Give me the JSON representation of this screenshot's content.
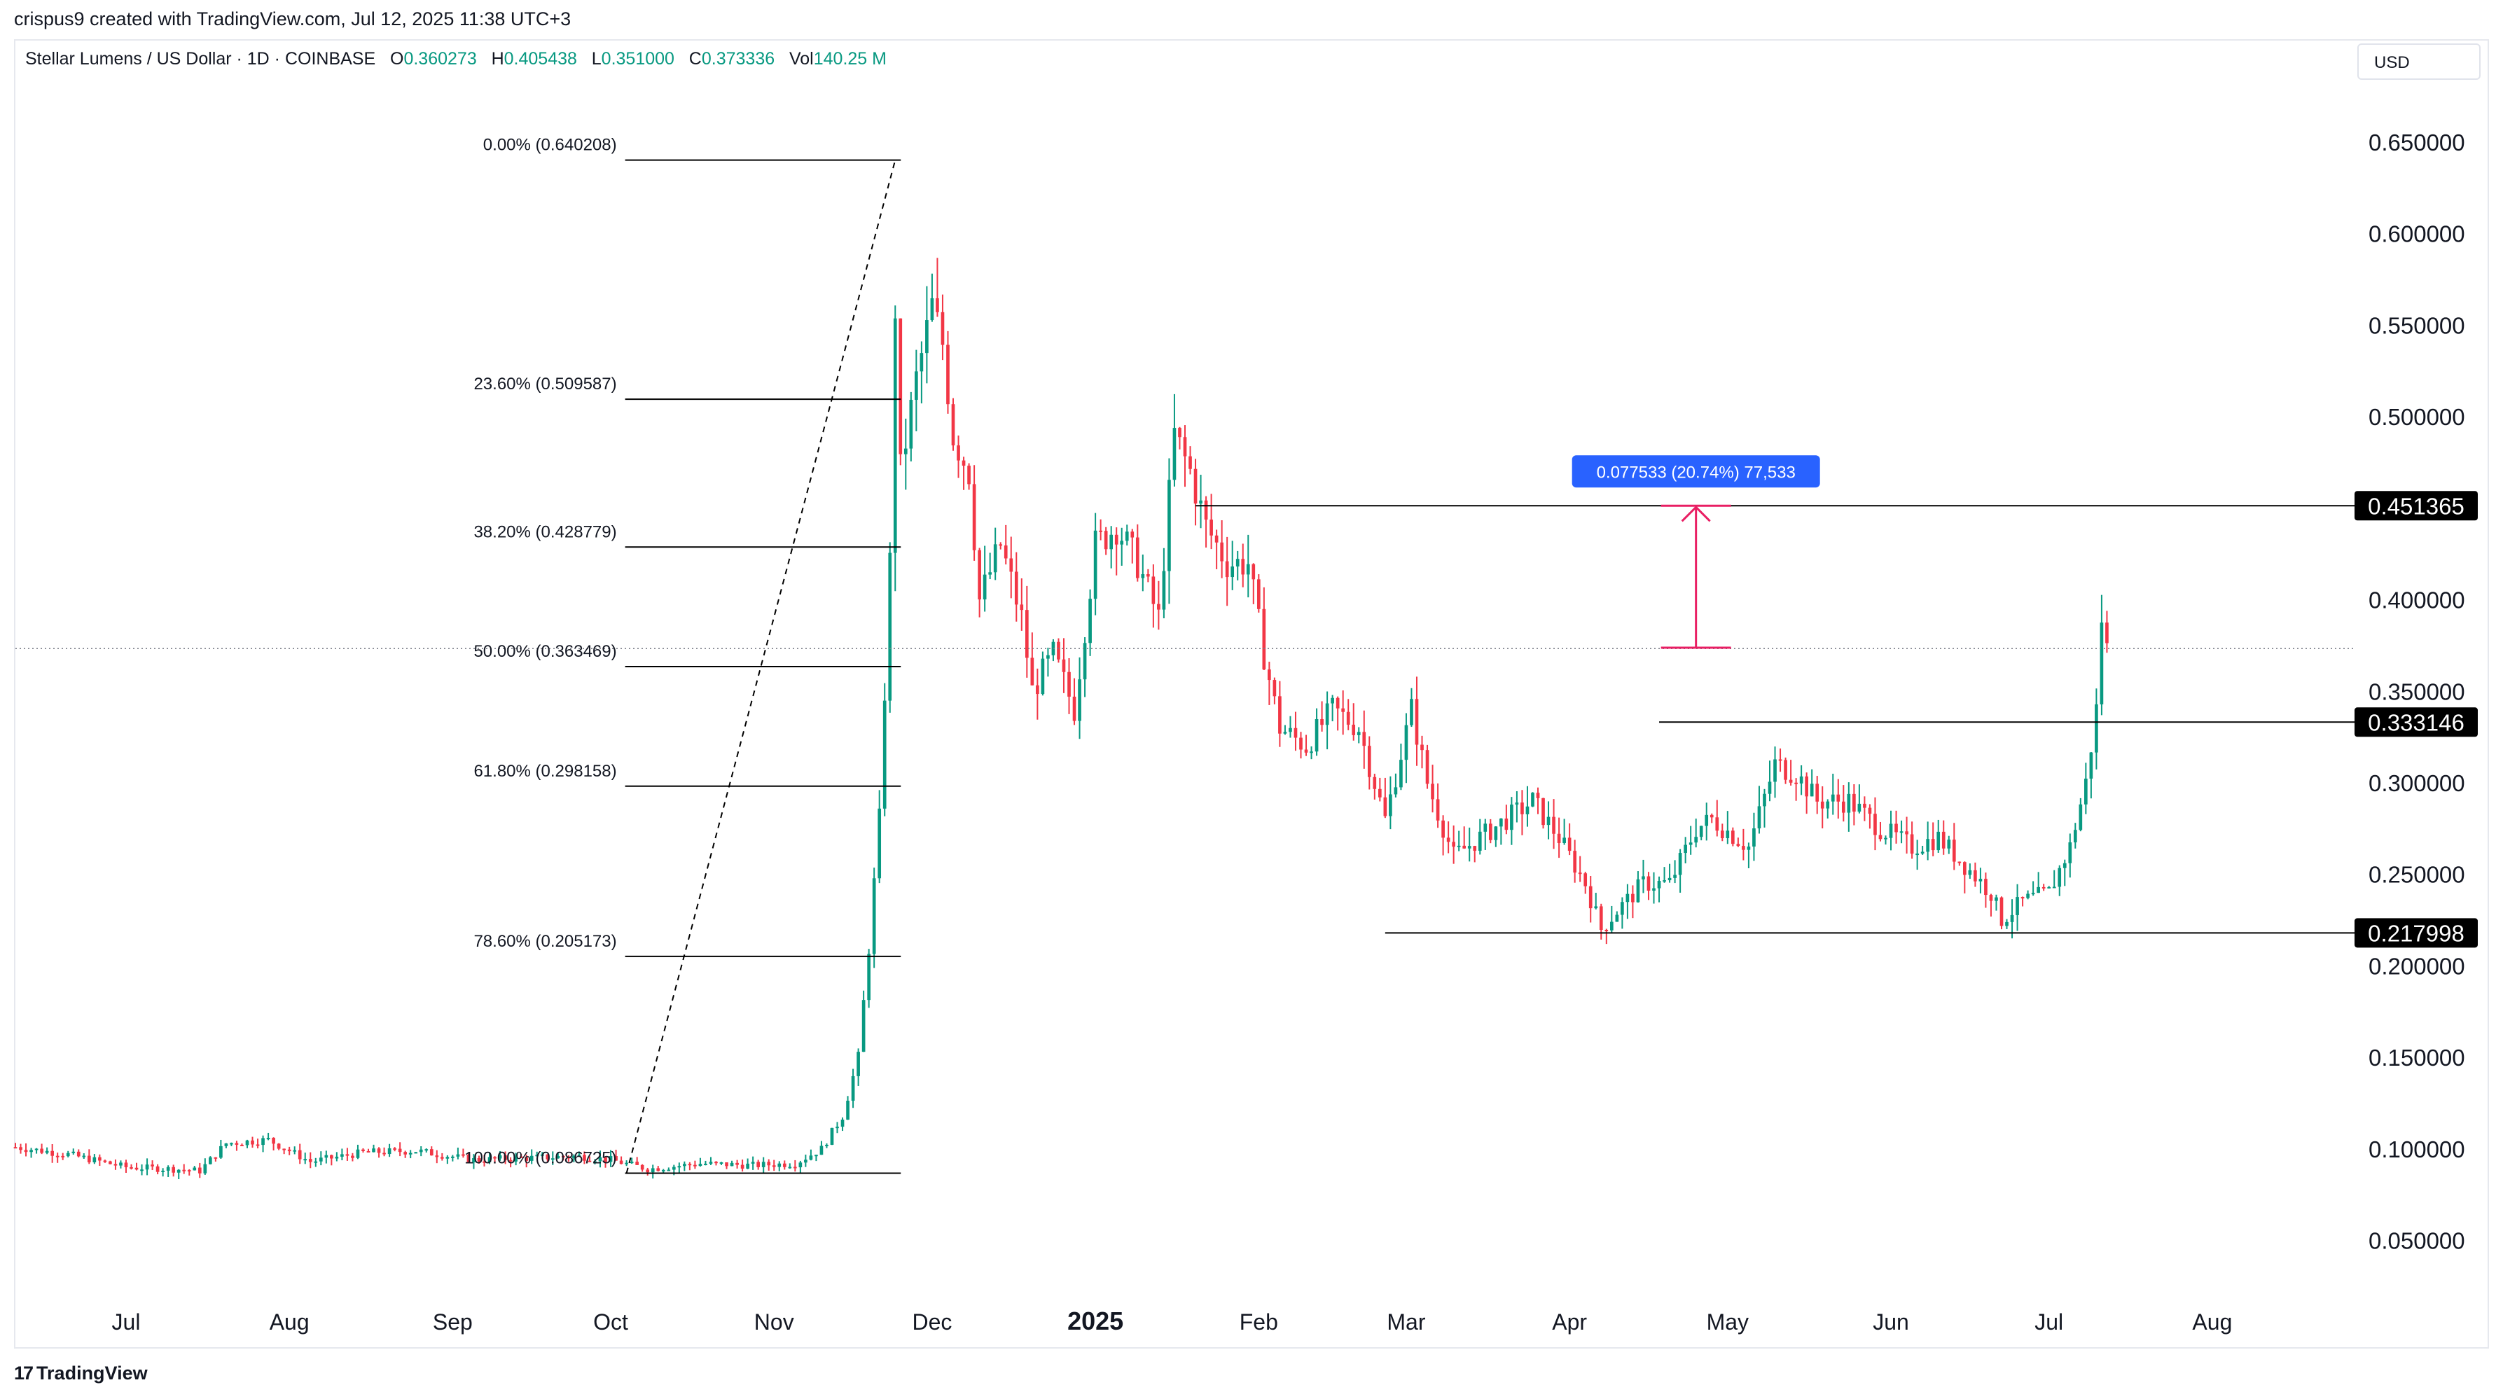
{
  "header": {
    "created_text": "crispus9 created with TradingView.com, Jul 12, 2025 11:38 UTC+3"
  },
  "legend": {
    "symbol": "Stellar Lumens / US Dollar · 1D · COINBASE",
    "open_label": "O",
    "open": "0.360273",
    "high_label": "H",
    "high": "0.405438",
    "low_label": "L",
    "low": "0.351000",
    "close_label": "C",
    "close": "0.373336",
    "vol_label": "Vol",
    "vol": "140.25 M"
  },
  "currency": "USD",
  "footer": {
    "logo_icon": "tradingview-logo-icon",
    "brand": "TradingView"
  },
  "colors": {
    "up": "#089981",
    "down": "#f23645",
    "measure": "#e91e63",
    "label_blue": "#2962ff",
    "price_tag_bg": "#000000",
    "fib_line": "#000000"
  },
  "chart_data": {
    "type": "candlestick",
    "y_axis": {
      "ticks": [
        "0.650000",
        "0.600000",
        "0.550000",
        "0.500000",
        "0.450000",
        "0.400000",
        "0.350000",
        "0.300000",
        "0.250000",
        "0.200000",
        "0.150000",
        "0.100000",
        "0.050000"
      ],
      "tick_values": [
        0.65,
        0.6,
        0.55,
        0.5,
        0.45,
        0.4,
        0.35,
        0.3,
        0.25,
        0.2,
        0.15,
        0.1,
        0.05
      ],
      "ylim": [
        0.0,
        0.7
      ]
    },
    "x_axis": {
      "ticks": [
        "Jul",
        "Aug",
        "Sep",
        "Oct",
        "Nov",
        "Dec",
        "2025",
        "Feb",
        "Mar",
        "Apr",
        "May",
        "Jun",
        "Jul",
        "Aug"
      ],
      "tick_dates": [
        "2024-07-01",
        "2024-08-01",
        "2024-09-01",
        "2024-10-01",
        "2024-11-01",
        "2024-12-01",
        "2025-01-01",
        "2025-02-01",
        "2025-03-01",
        "2025-04-01",
        "2025-05-01",
        "2025-06-01",
        "2025-07-01",
        "2025-08-01"
      ],
      "bold_tick": "2025",
      "range": [
        "2024-06-10",
        "2025-08-28"
      ]
    },
    "price_path": [
      [
        "2024-06-10",
        0.101
      ],
      [
        "2024-06-20",
        0.097
      ],
      [
        "2024-07-01",
        0.09
      ],
      [
        "2024-07-10",
        0.089
      ],
      [
        "2024-07-15",
        0.088
      ],
      [
        "2024-07-20",
        0.103
      ],
      [
        "2024-07-28",
        0.105
      ],
      [
        "2024-08-05",
        0.093
      ],
      [
        "2024-08-15",
        0.098
      ],
      [
        "2024-08-25",
        0.099
      ],
      [
        "2024-09-05",
        0.094
      ],
      [
        "2024-09-15",
        0.095
      ],
      [
        "2024-09-25",
        0.096
      ],
      [
        "2024-10-01",
        0.094
      ],
      [
        "2024-10-08",
        0.089
      ],
      [
        "2024-10-18",
        0.092
      ],
      [
        "2024-10-28",
        0.091
      ],
      [
        "2024-11-05",
        0.092
      ],
      [
        "2024-11-10",
        0.1
      ],
      [
        "2024-11-14",
        0.118
      ],
      [
        "2024-11-17",
        0.15
      ],
      [
        "2024-11-19",
        0.21
      ],
      [
        "2024-11-21",
        0.28
      ],
      [
        "2024-11-23",
        0.42
      ],
      [
        "2024-11-24",
        0.56
      ],
      [
        "2024-11-25",
        0.47
      ],
      [
        "2024-11-28",
        0.52
      ],
      [
        "2024-12-01",
        0.56
      ],
      [
        "2024-12-03",
        0.54
      ],
      [
        "2024-12-05",
        0.49
      ],
      [
        "2024-12-08",
        0.47
      ],
      [
        "2024-12-10",
        0.4
      ],
      [
        "2024-12-14",
        0.43
      ],
      [
        "2024-12-18",
        0.39
      ],
      [
        "2024-12-20",
        0.35
      ],
      [
        "2024-12-24",
        0.37
      ],
      [
        "2024-12-28",
        0.34
      ],
      [
        "2025-01-01",
        0.43
      ],
      [
        "2025-01-05",
        0.44
      ],
      [
        "2025-01-09",
        0.42
      ],
      [
        "2025-01-13",
        0.39
      ],
      [
        "2025-01-16",
        0.49
      ],
      [
        "2025-01-19",
        0.47
      ],
      [
        "2025-01-22",
        0.44
      ],
      [
        "2025-01-26",
        0.42
      ],
      [
        "2025-01-30",
        0.42
      ],
      [
        "2025-02-02",
        0.37
      ],
      [
        "2025-02-05",
        0.33
      ],
      [
        "2025-02-10",
        0.32
      ],
      [
        "2025-02-15",
        0.34
      ],
      [
        "2025-02-20",
        0.33
      ],
      [
        "2025-02-25",
        0.28
      ],
      [
        "2025-03-02",
        0.34
      ],
      [
        "2025-03-05",
        0.3
      ],
      [
        "2025-03-10",
        0.26
      ],
      [
        "2025-03-15",
        0.27
      ],
      [
        "2025-03-20",
        0.28
      ],
      [
        "2025-03-25",
        0.29
      ],
      [
        "2025-03-30",
        0.27
      ],
      [
        "2025-04-04",
        0.245
      ],
      [
        "2025-04-07",
        0.22
      ],
      [
        "2025-04-10",
        0.23
      ],
      [
        "2025-04-15",
        0.245
      ],
      [
        "2025-04-20",
        0.245
      ],
      [
        "2025-04-25",
        0.275
      ],
      [
        "2025-04-28",
        0.28
      ],
      [
        "2025-05-05",
        0.265
      ],
      [
        "2025-05-10",
        0.31
      ],
      [
        "2025-05-14",
        0.305
      ],
      [
        "2025-05-18",
        0.29
      ],
      [
        "2025-05-24",
        0.29
      ],
      [
        "2025-05-30",
        0.275
      ],
      [
        "2025-06-05",
        0.265
      ],
      [
        "2025-06-10",
        0.27
      ],
      [
        "2025-06-15",
        0.255
      ],
      [
        "2025-06-20",
        0.24
      ],
      [
        "2025-06-22",
        0.225
      ],
      [
        "2025-06-26",
        0.235
      ],
      [
        "2025-07-01",
        0.24
      ],
      [
        "2025-07-05",
        0.265
      ],
      [
        "2025-07-08",
        0.3
      ],
      [
        "2025-07-10",
        0.34
      ],
      [
        "2025-07-11",
        0.39
      ],
      [
        "2025-07-12",
        0.373
      ]
    ],
    "last_price": 0.373336,
    "fibonacci": {
      "start": [
        "2024-10-04",
        0.086725
      ],
      "end": [
        "2024-11-24",
        0.640208
      ],
      "levels": [
        {
          "label": "0.00% (0.640208)",
          "value": 0.640208
        },
        {
          "label": "23.60% (0.509587)",
          "value": 0.509587
        },
        {
          "label": "38.20% (0.428779)",
          "value": 0.428779
        },
        {
          "label": "50.00% (0.363469)",
          "value": 0.363469
        },
        {
          "label": "61.80% (0.298158)",
          "value": 0.298158
        },
        {
          "label": "78.60% (0.205173)",
          "value": 0.205173
        },
        {
          "label": "100.00% (0.086725)",
          "value": 0.086725
        }
      ]
    },
    "horizontal_levels": [
      {
        "label": "0.451365",
        "value": 0.451365,
        "from": "2025-01-20"
      },
      {
        "label": "0.333146",
        "value": 0.333146,
        "from": "2025-04-18"
      },
      {
        "label": "0.217998",
        "value": 0.217998,
        "from": "2025-02-25"
      }
    ],
    "measure": {
      "date": "2025-04-25",
      "from_value": 0.3738,
      "to_value": 0.451365,
      "label": "0.077533 (20.74%) 77,533"
    }
  }
}
